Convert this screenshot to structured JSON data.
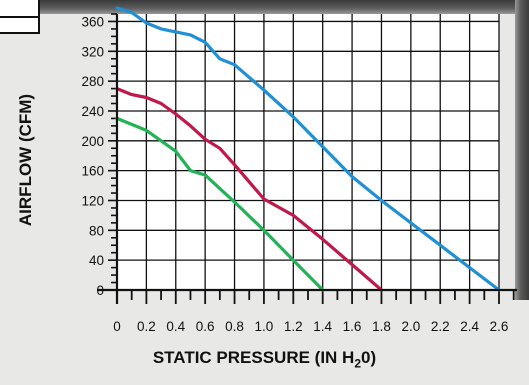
{
  "chart_data": {
    "type": "line",
    "xlabel_main": "STATIC PRESSURE (IN H",
    "xlabel_sub": "2",
    "xlabel_end": "0)",
    "ylabel": "AIRFLOW (CFM)",
    "xlim": [
      0,
      2.6
    ],
    "ylim": [
      0,
      370
    ],
    "grid": true,
    "x_ticks": [
      "0",
      "0.2",
      "0.4",
      "0.6",
      "0.8",
      "1.0",
      "1.2",
      "1.4",
      "1.6",
      "1.8",
      "2.0",
      "2.2",
      "2.4",
      "2.6"
    ],
    "y_ticks": [
      "0",
      "40",
      "80",
      "120",
      "160",
      "200",
      "240",
      "280",
      "320",
      "360"
    ],
    "series": [
      {
        "color": "#1f8fd6",
        "x": [
          0,
          0.1,
          0.2,
          0.3,
          0.5,
          0.6,
          0.7,
          0.8,
          1.0,
          1.2,
          1.4,
          1.6,
          1.8,
          2.0,
          2.2,
          2.4,
          2.6
        ],
        "y": [
          378,
          372,
          358,
          350,
          342,
          332,
          310,
          302,
          268,
          232,
          192,
          152,
          120,
          90,
          60,
          30,
          0
        ]
      },
      {
        "color": "#c0184a",
        "x": [
          0,
          0.1,
          0.2,
          0.3,
          0.4,
          0.5,
          0.6,
          0.7,
          0.8,
          1.0,
          1.2,
          1.4,
          1.6,
          1.8
        ],
        "y": [
          270,
          262,
          258,
          250,
          236,
          220,
          202,
          190,
          168,
          122,
          100,
          68,
          34,
          0
        ]
      },
      {
        "color": "#22b356",
        "x": [
          0,
          0.1,
          0.2,
          0.3,
          0.4,
          0.5,
          0.6,
          0.7,
          0.8,
          1.0,
          1.2,
          1.4
        ],
        "y": [
          230,
          222,
          214,
          200,
          186,
          160,
          154,
          136,
          118,
          80,
          40,
          0
        ]
      }
    ]
  }
}
